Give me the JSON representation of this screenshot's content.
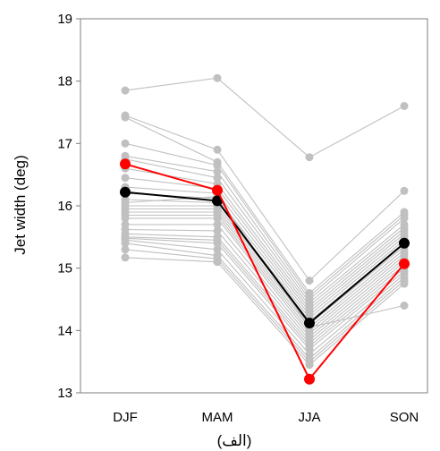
{
  "chart_data": {
    "type": "line",
    "categories": [
      "DJF",
      "MAM",
      "JJA",
      "SON"
    ],
    "ylabel": "Jet width (deg)",
    "xlabel": "",
    "ylim": [
      13,
      19
    ],
    "yticks": [
      13,
      14,
      15,
      16,
      17,
      18,
      19
    ],
    "ytick_labels": [
      "13",
      "14",
      "15",
      "16",
      "17",
      "18",
      "19"
    ],
    "caption": "(الف)",
    "grid": false,
    "colors": {
      "ensemble": "#c0c0c0",
      "mean": "#000000",
      "highlight": "#ff0000"
    },
    "ensemble": [
      [
        17.85,
        18.05,
        16.78,
        17.6
      ],
      [
        17.45,
        16.9,
        14.8,
        16.24
      ],
      [
        17.42,
        16.7,
        14.6,
        15.9
      ],
      [
        17.0,
        16.65,
        14.55,
        15.85
      ],
      [
        16.8,
        16.55,
        14.5,
        15.8
      ],
      [
        16.75,
        16.45,
        14.45,
        15.7
      ],
      [
        16.6,
        16.35,
        14.4,
        15.65
      ],
      [
        16.45,
        16.28,
        14.35,
        15.6
      ],
      [
        16.3,
        16.2,
        14.3,
        15.55
      ],
      [
        16.2,
        16.12,
        14.25,
        15.5
      ],
      [
        16.1,
        16.05,
        14.2,
        15.45
      ],
      [
        16.0,
        16.0,
        14.15,
        15.4
      ],
      [
        15.95,
        15.95,
        14.1,
        15.35
      ],
      [
        15.9,
        15.9,
        14.05,
        15.3
      ],
      [
        15.85,
        15.85,
        14.0,
        15.25
      ],
      [
        15.8,
        15.8,
        13.95,
        15.2
      ],
      [
        15.7,
        15.7,
        13.9,
        15.15
      ],
      [
        15.62,
        15.6,
        13.85,
        15.1
      ],
      [
        15.55,
        15.5,
        13.8,
        15.05
      ],
      [
        15.5,
        15.45,
        13.75,
        15.0
      ],
      [
        15.48,
        15.4,
        13.7,
        14.95
      ],
      [
        15.45,
        15.3,
        13.62,
        14.9
      ],
      [
        15.4,
        15.2,
        13.55,
        14.85
      ],
      [
        15.3,
        15.15,
        13.5,
        14.8
      ],
      [
        15.17,
        15.1,
        13.45,
        14.75
      ],
      [
        16.05,
        16.15,
        14.05,
        14.4
      ]
    ],
    "series": [
      {
        "values": [
          16.22,
          16.08,
          14.12,
          15.4
        ],
        "color": "#000000"
      },
      {
        "values": [
          16.67,
          16.25,
          13.22,
          15.07
        ],
        "color": "#ff0000"
      }
    ]
  }
}
